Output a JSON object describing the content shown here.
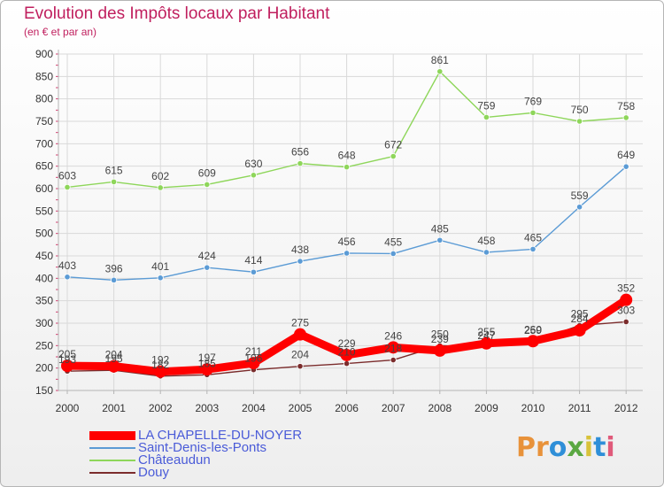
{
  "header": {
    "title": "Evolution des Impôts locaux par Habitant",
    "subtitle": "(en € et par an)"
  },
  "logo_text": "Proxiti",
  "colors": {
    "title": "#c01f5e",
    "axis": "#b5b5b5",
    "grid": "#d9d9d9"
  },
  "chart_data": {
    "type": "line",
    "title": "Evolution des Impôts locaux par Habitant",
    "subtitle": "(en € et par an)",
    "x": [
      "2000",
      "2001",
      "2002",
      "2003",
      "2004",
      "2005",
      "2006",
      "2007",
      "2008",
      "2009",
      "2010",
      "2011",
      "2012"
    ],
    "ylim": [
      150,
      900
    ],
    "yticks": [
      150,
      200,
      250,
      300,
      350,
      400,
      450,
      500,
      550,
      600,
      650,
      700,
      750,
      800,
      850,
      900
    ],
    "grid": true,
    "legend_position": "bottom-left",
    "series": [
      {
        "name": "LA CHAPELLE-DU-NOYER",
        "color": "#ff0000",
        "values": [
          205,
          204,
          192,
          197,
          211,
          275,
          229,
          246,
          239,
          255,
          260,
          284,
          352
        ],
        "labels": [
          "205",
          "204",
          "192",
          "197",
          "211",
          "275",
          "229",
          "246",
          "239",
          "255",
          "260",
          "284",
          "352"
        ]
      },
      {
        "name": "Saint-Denis-les-Ponts",
        "color": "#5b9bd5",
        "values": [
          403,
          396,
          401,
          424,
          414,
          438,
          456,
          455,
          485,
          458,
          465,
          559,
          649
        ],
        "labels": [
          "403",
          "396",
          "401",
          "424",
          "414",
          "438",
          "456",
          "455",
          "485",
          "458",
          "465",
          "559",
          "649"
        ]
      },
      {
        "name": "Châteaudun",
        "color": "#8ed65a",
        "values": [
          603,
          615,
          602,
          609,
          630,
          656,
          648,
          672,
          861,
          759,
          769,
          750,
          758
        ],
        "labels": [
          "603",
          "615",
          "602",
          "609",
          "630",
          "656",
          "648",
          "672",
          "861",
          "759",
          "769",
          "750",
          "758"
        ]
      },
      {
        "name": "Douy",
        "color": "#7b2c2c",
        "values": [
          193,
          195,
          182,
          185,
          196,
          204,
          210,
          218,
          250,
          247,
          259,
          295,
          303
        ],
        "labels": [
          "193",
          "195",
          "182",
          "185",
          "196",
          "204",
          "210",
          "218",
          "250",
          "247",
          "259",
          "295",
          "303"
        ]
      }
    ]
  }
}
